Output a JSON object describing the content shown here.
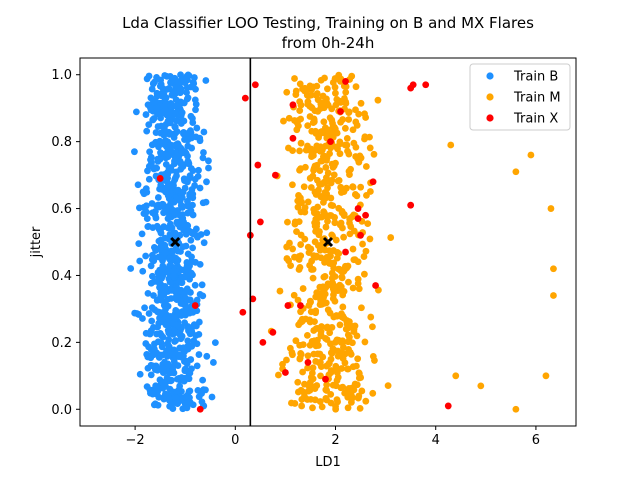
{
  "chart_data": {
    "type": "scatter",
    "title_line1": "Lda Classifier LOO Testing, Training on B and MX Flares",
    "title_line2": "from 0h-24h",
    "xlabel": "LD1",
    "ylabel": "jitter",
    "xlim": [
      -3.1,
      6.8
    ],
    "ylim": [
      -0.05,
      1.05
    ],
    "x_ticks": [
      -2,
      0,
      2,
      4,
      6
    ],
    "x_tick_labels": [
      "−2",
      "0",
      "2",
      "4",
      "6"
    ],
    "y_ticks": [
      0.0,
      0.2,
      0.4,
      0.6,
      0.8,
      1.0
    ],
    "y_tick_labels": [
      "0.0",
      "0.2",
      "0.4",
      "0.6",
      "0.8",
      "1.0"
    ],
    "decision_boundary_x": 0.3,
    "centroids": [
      {
        "x": -1.2,
        "y": 0.5
      },
      {
        "x": 1.85,
        "y": 0.5
      }
    ],
    "legend_position": "top-right",
    "grid": false,
    "series": [
      {
        "name": "Train B",
        "color": "#1e90ff",
        "x_range": [
          -2.7,
          0.25
        ],
        "count": 900,
        "sample_points": [
          [
            -2.5,
            0.1
          ],
          [
            -1.5,
            0.6
          ],
          [
            -0.5,
            0.3
          ],
          [
            -2.0,
            0.9
          ],
          [
            -1.0,
            0.05
          ],
          [
            0.1,
            0.95
          ]
        ]
      },
      {
        "name": "Train M",
        "color": "#ffa500",
        "x_range": [
          -0.9,
          6.4
        ],
        "count": 650,
        "outliers": [
          [
            5.6,
            0.71
          ],
          [
            5.9,
            0.76
          ],
          [
            6.3,
            0.6
          ],
          [
            6.35,
            0.42
          ],
          [
            6.35,
            0.34
          ],
          [
            6.2,
            0.1
          ],
          [
            4.9,
            0.07
          ],
          [
            5.6,
            0.0
          ],
          [
            4.4,
            0.1
          ],
          [
            4.3,
            0.79
          ]
        ],
        "sample_points": [
          [
            0.5,
            0.5
          ],
          [
            1.5,
            0.8
          ],
          [
            2.5,
            0.3
          ],
          [
            3.5,
            0.6
          ],
          [
            1.0,
            0.1
          ]
        ]
      },
      {
        "name": "Train X",
        "color": "#ff0000",
        "points": [
          [
            -1.5,
            0.69
          ],
          [
            -0.7,
            0.0
          ],
          [
            -0.8,
            0.31
          ],
          [
            0.15,
            0.29
          ],
          [
            0.2,
            0.93
          ],
          [
            0.45,
            0.73
          ],
          [
            0.5,
            0.56
          ],
          [
            0.55,
            0.2
          ],
          [
            0.75,
            0.23
          ],
          [
            0.8,
            0.7
          ],
          [
            1.0,
            0.11
          ],
          [
            1.05,
            0.31
          ],
          [
            1.15,
            0.91
          ],
          [
            1.15,
            0.81
          ],
          [
            1.3,
            0.31
          ],
          [
            1.45,
            0.14
          ],
          [
            1.8,
            0.09
          ],
          [
            1.9,
            0.8
          ],
          [
            2.1,
            0.89
          ],
          [
            2.2,
            0.98
          ],
          [
            2.45,
            0.6
          ],
          [
            2.45,
            0.57
          ],
          [
            2.5,
            0.52
          ],
          [
            2.6,
            0.58
          ],
          [
            2.75,
            0.68
          ],
          [
            2.8,
            0.37
          ],
          [
            2.2,
            0.47
          ],
          [
            3.5,
            0.96
          ],
          [
            3.55,
            0.97
          ],
          [
            3.8,
            0.97
          ],
          [
            3.5,
            0.61
          ],
          [
            4.25,
            0.01
          ],
          [
            0.3,
            0.52
          ],
          [
            0.4,
            0.97
          ],
          [
            0.35,
            0.33
          ]
        ]
      }
    ]
  }
}
